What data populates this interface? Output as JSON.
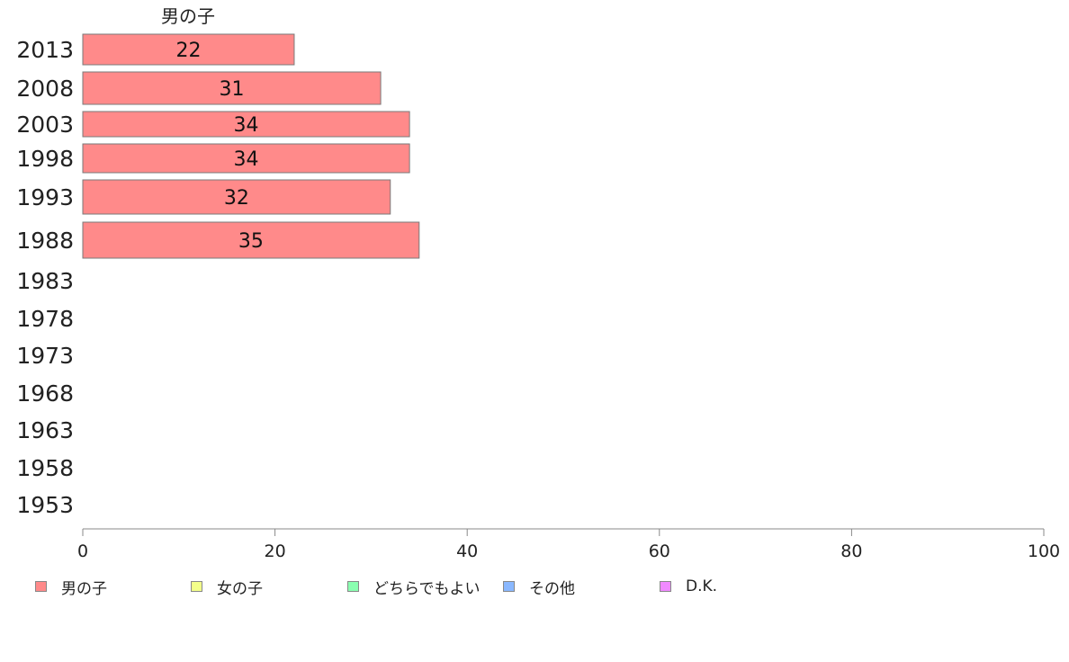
{
  "chart_data": {
    "type": "bar",
    "orientation": "horizontal",
    "title": "男の子",
    "categories": [
      "2013",
      "2008",
      "2003",
      "1998",
      "1993",
      "1988",
      "1983",
      "1978",
      "1973",
      "1968",
      "1963",
      "1958",
      "1953"
    ],
    "series": [
      {
        "name": "男の子",
        "color": "#ff8a8a",
        "values": [
          22,
          31,
          34,
          34,
          32,
          35,
          null,
          null,
          null,
          null,
          null,
          null,
          null
        ],
        "labels": [
          "22",
          "31",
          "34",
          "34",
          "32",
          "35"
        ]
      }
    ],
    "xlim": [
      0,
      100
    ],
    "xticks": [
      "0",
      "20",
      "40",
      "60",
      "80",
      "100"
    ],
    "grid": false,
    "legend_position": "bottom"
  },
  "legend": [
    {
      "label": "男の子",
      "color": "#ff8a8a"
    },
    {
      "label": "女の子",
      "color": "#f3ff8a"
    },
    {
      "label": "どちらでもよい",
      "color": "#8affb0"
    },
    {
      "label": "その他",
      "color": "#8ab8ff"
    },
    {
      "label": "D.K.",
      "color": "#f08aff"
    }
  ]
}
